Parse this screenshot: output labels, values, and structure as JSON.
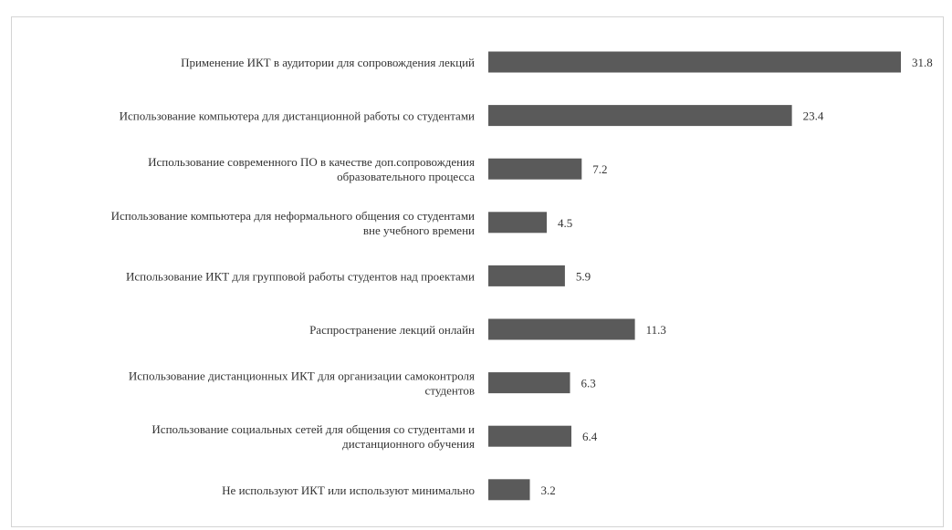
{
  "chart_data": {
    "type": "bar",
    "orientation": "horizontal",
    "title": "",
    "xlabel": "",
    "ylabel": "",
    "grid": false,
    "legend": "none",
    "bar_color": "#5a5a5a",
    "xlim": [
      0,
      31.8
    ],
    "categories": [
      [
        "Применение ИКТ в аудитории для сопровождения лекций"
      ],
      [
        "Использование компьютера для дистанционной работы со студентами"
      ],
      [
        "Использование современного ПО в качестве доп.сопровождения",
        "образовательного процесса"
      ],
      [
        "Использование компьютера для неформального общения со студентами",
        "вне учебного времени"
      ],
      [
        "Использование ИКТ для групповой работы студентов над проектами"
      ],
      [
        "Распространение лекций онлайн"
      ],
      [
        "Использование дистанционных ИКТ для организации самоконтроля",
        "студентов"
      ],
      [
        "Использование социальных сетей для общения со студентами и",
        "дистанционного обучения"
      ],
      [
        "Не используют ИКТ или используют минимально"
      ]
    ],
    "values": [
      31.8,
      23.4,
      7.2,
      4.5,
      5.9,
      11.3,
      6.3,
      6.4,
      3.2
    ],
    "value_labels": [
      "31.8",
      "23.4",
      "7.2",
      "4.5",
      "5.9",
      "11.3",
      "6.3",
      "6.4",
      "3.2"
    ]
  }
}
